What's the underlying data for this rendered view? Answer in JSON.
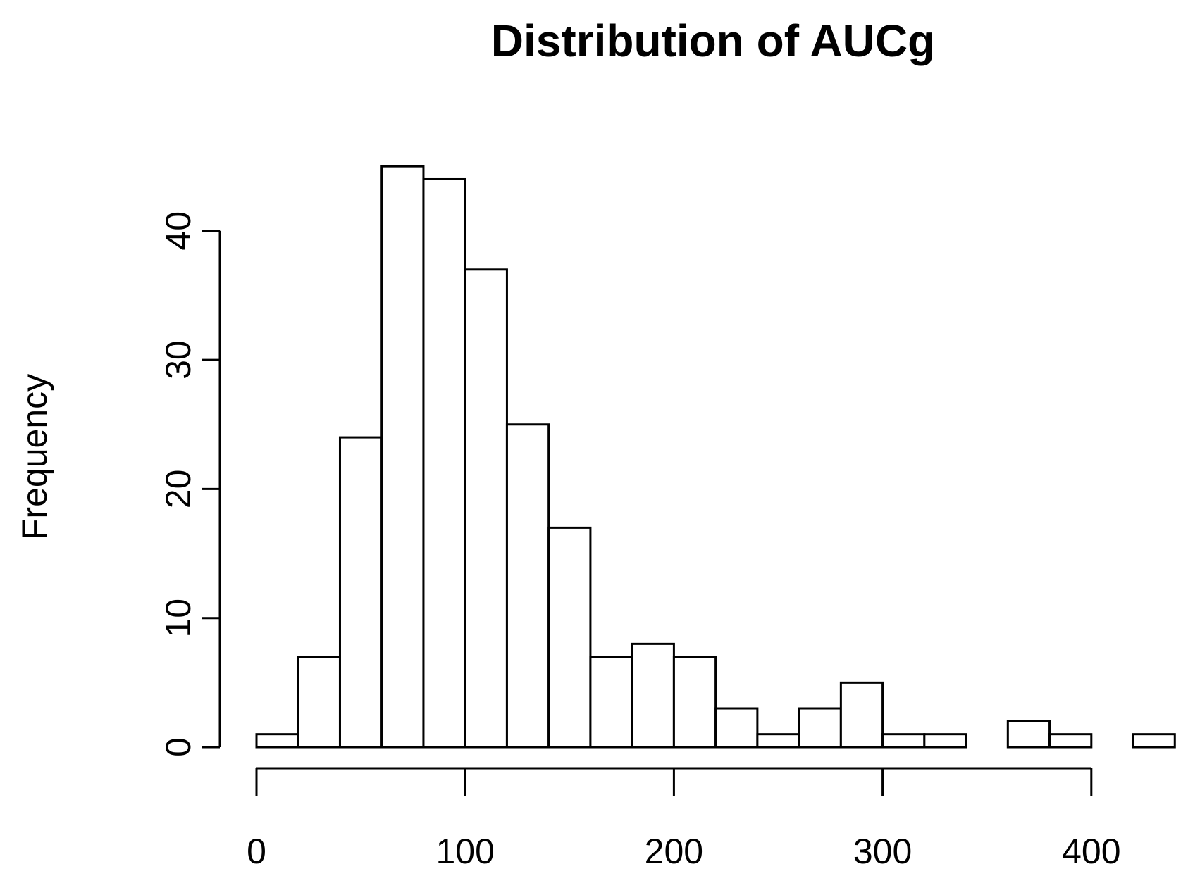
{
  "chart_data": {
    "type": "bar",
    "title": "Distribution of AUCg",
    "xlabel": "",
    "ylabel": "Frequency",
    "bin_width": 20,
    "bin_edges": [
      0,
      20,
      40,
      60,
      80,
      100,
      120,
      140,
      160,
      180,
      200,
      220,
      240,
      260,
      280,
      300,
      320,
      340,
      360,
      380,
      400,
      420,
      440
    ],
    "values": [
      1,
      7,
      24,
      45,
      44,
      37,
      25,
      17,
      7,
      8,
      7,
      3,
      1,
      3,
      5,
      1,
      1,
      0,
      2,
      1,
      0,
      1
    ],
    "xlim": [
      0,
      440
    ],
    "ylim": [
      0,
      45
    ],
    "x_ticks": [
      0,
      100,
      200,
      300,
      400
    ],
    "x_tick_labels": [
      "0",
      "100",
      "200",
      "300",
      "400"
    ],
    "y_ticks": [
      0,
      10,
      20,
      30,
      40
    ],
    "y_tick_labels": [
      "0",
      "10",
      "20",
      "30",
      "40"
    ],
    "grid": false,
    "legend": "none"
  }
}
